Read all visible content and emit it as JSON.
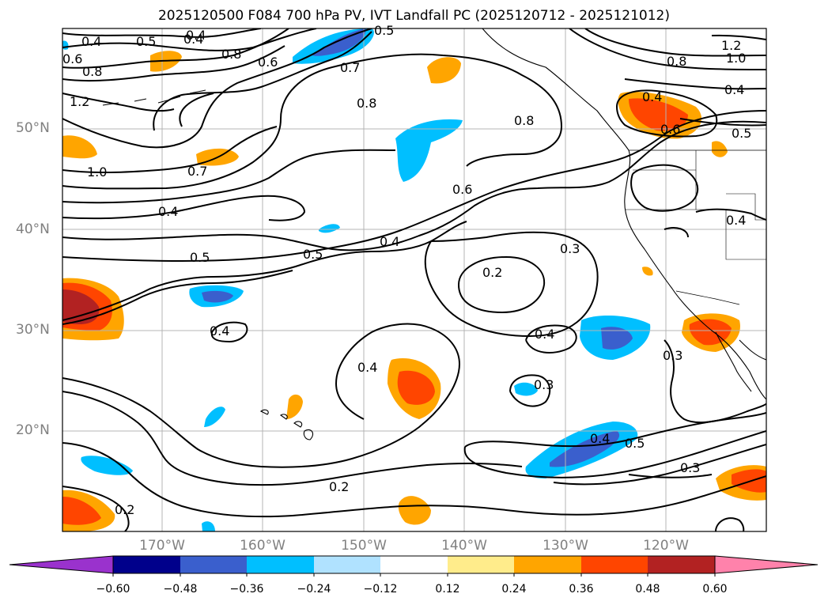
{
  "title": "2025120500 F084 700 hPa PV, IVT Landfall PC (2025120712 - 2025121012)",
  "lat_labels": [
    "50°N",
    "40°N",
    "30°N",
    "20°N"
  ],
  "lon_labels": [
    "170°W",
    "160°W",
    "150°W",
    "140°W",
    "130°W",
    "120°W"
  ],
  "colorbar": {
    "ticks": [
      "−0.60",
      "−0.48",
      "−0.36",
      "−0.24",
      "−0.12",
      "0.12",
      "0.24",
      "0.36",
      "0.48",
      "0.60"
    ],
    "colors": [
      "#9a32cd",
      "#00008b",
      "#3a5fcd",
      "#00bfff",
      "#b0e2ff",
      "#ffffff",
      "#ffec8b",
      "#ffa500",
      "#ff4500",
      "#b22222",
      "#ff82ab"
    ]
  },
  "contour_labels": [
    "0.4",
    "0.5",
    "0.4",
    "0.5",
    "0.8",
    "0.6",
    "0.7",
    "0.8",
    "0.8",
    "1.2",
    "1.0",
    "0.8",
    "0.4",
    "0.4",
    "0.6",
    "0.5",
    "1.2",
    "1.0",
    "0.7",
    "0.6",
    "0.4",
    "0.4",
    "0.5",
    "0.5",
    "0.4",
    "0.3",
    "0.2",
    "0.4",
    "0.4",
    "0.4",
    "0.3",
    "0.3",
    "0.4",
    "0.5",
    "0.3",
    "0.2",
    "0.2",
    "0.8",
    "0.6",
    "0.4"
  ]
}
